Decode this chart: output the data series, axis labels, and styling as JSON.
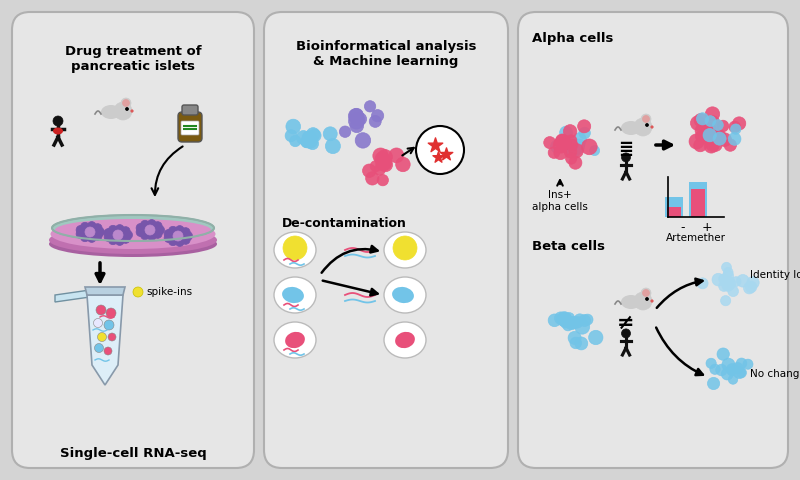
{
  "bg_color": "#d4d4d4",
  "panel_color": "#e6e6e6",
  "panel_edge_color": "#b0b0b0",
  "title_fontsize": 9.5,
  "label_fontsize": 8.5,
  "small_fontsize": 7.5,
  "panel1_title": "Drug treatment of\npancreatic islets",
  "panel1_bottom": "Single-cell RNA-seq",
  "panel2_title": "Bioinformatical analysis\n& Machine learning",
  "panel2_label": "De-contamination",
  "panel3_title_alpha": "Alpha cells",
  "panel3_title_beta": "Beta cells",
  "panel3_label1": "Ins+\nalpha cells",
  "panel3_label2": "Artemether",
  "panel3_label3": "Identity loss",
  "panel3_label4": "No change",
  "spike_ins_label": "spike-ins",
  "colors": {
    "pink_cell": "#e8507a",
    "blue_cell": "#72c4e8",
    "purple_cell": "#8878cc",
    "yellow_cell": "#f0e030",
    "red_cell": "#e03030",
    "light_blue2": "#a8d8f0",
    "dish_pink": "#d890c8",
    "dish_rim": "#c070b0",
    "dish_shadow": "#a860a0",
    "dish_teal": "#a0c8c0",
    "islet_outer": "#7755aa",
    "islet_inner": "#bb88cc",
    "tube_body": "#ddeef8",
    "tube_edge": "#8899aa",
    "mouse_body": "#cccccc",
    "human_body": "#111111"
  }
}
